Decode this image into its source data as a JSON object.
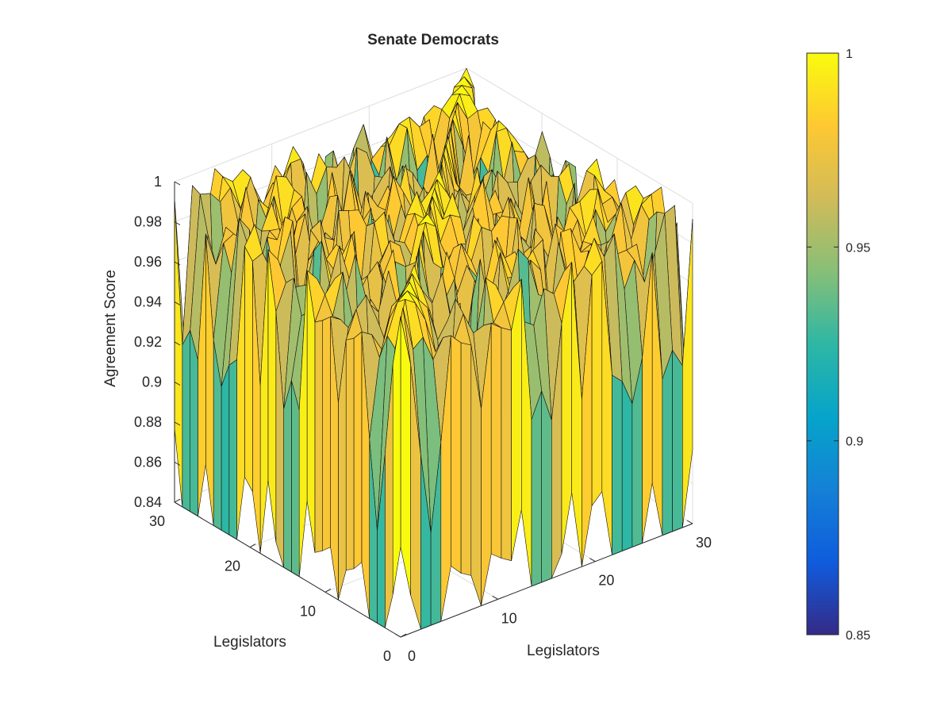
{
  "chart_data": {
    "type": "surface",
    "title": "Senate Democrats",
    "xlabel": "Legislators",
    "ylabel": "Legislators",
    "zlabel": "Agreement Score",
    "xlim": [
      0,
      30
    ],
    "ylim": [
      0,
      30
    ],
    "zlim": [
      0.84,
      1
    ],
    "x_ticks": [
      "0",
      "10",
      "20",
      "30"
    ],
    "y_ticks": [
      "0",
      "10",
      "20",
      "30"
    ],
    "z_ticks": [
      "0.84",
      "0.86",
      "0.88",
      "0.9",
      "0.92",
      "0.94",
      "0.96",
      "0.98",
      "1"
    ],
    "grid": true,
    "colormap": "parula",
    "colormap_stops": [
      "#352a87",
      "#0f5cdd",
      "#1481d6",
      "#06a4ca",
      "#2eb7a4",
      "#87bf77",
      "#d1bb59",
      "#fec832",
      "#f9fb0e"
    ],
    "colorbar": {
      "position": "right",
      "range": [
        0.85,
        1
      ],
      "ticks": [
        "0.85",
        "0.9",
        "0.95",
        "1"
      ]
    },
    "grid_size": [
      30,
      30
    ],
    "surface_description": "Symmetric 30x30 agreement matrix; most values 0.97-1.0 with sharp dips down to about 0.85 for a few legislators"
  }
}
